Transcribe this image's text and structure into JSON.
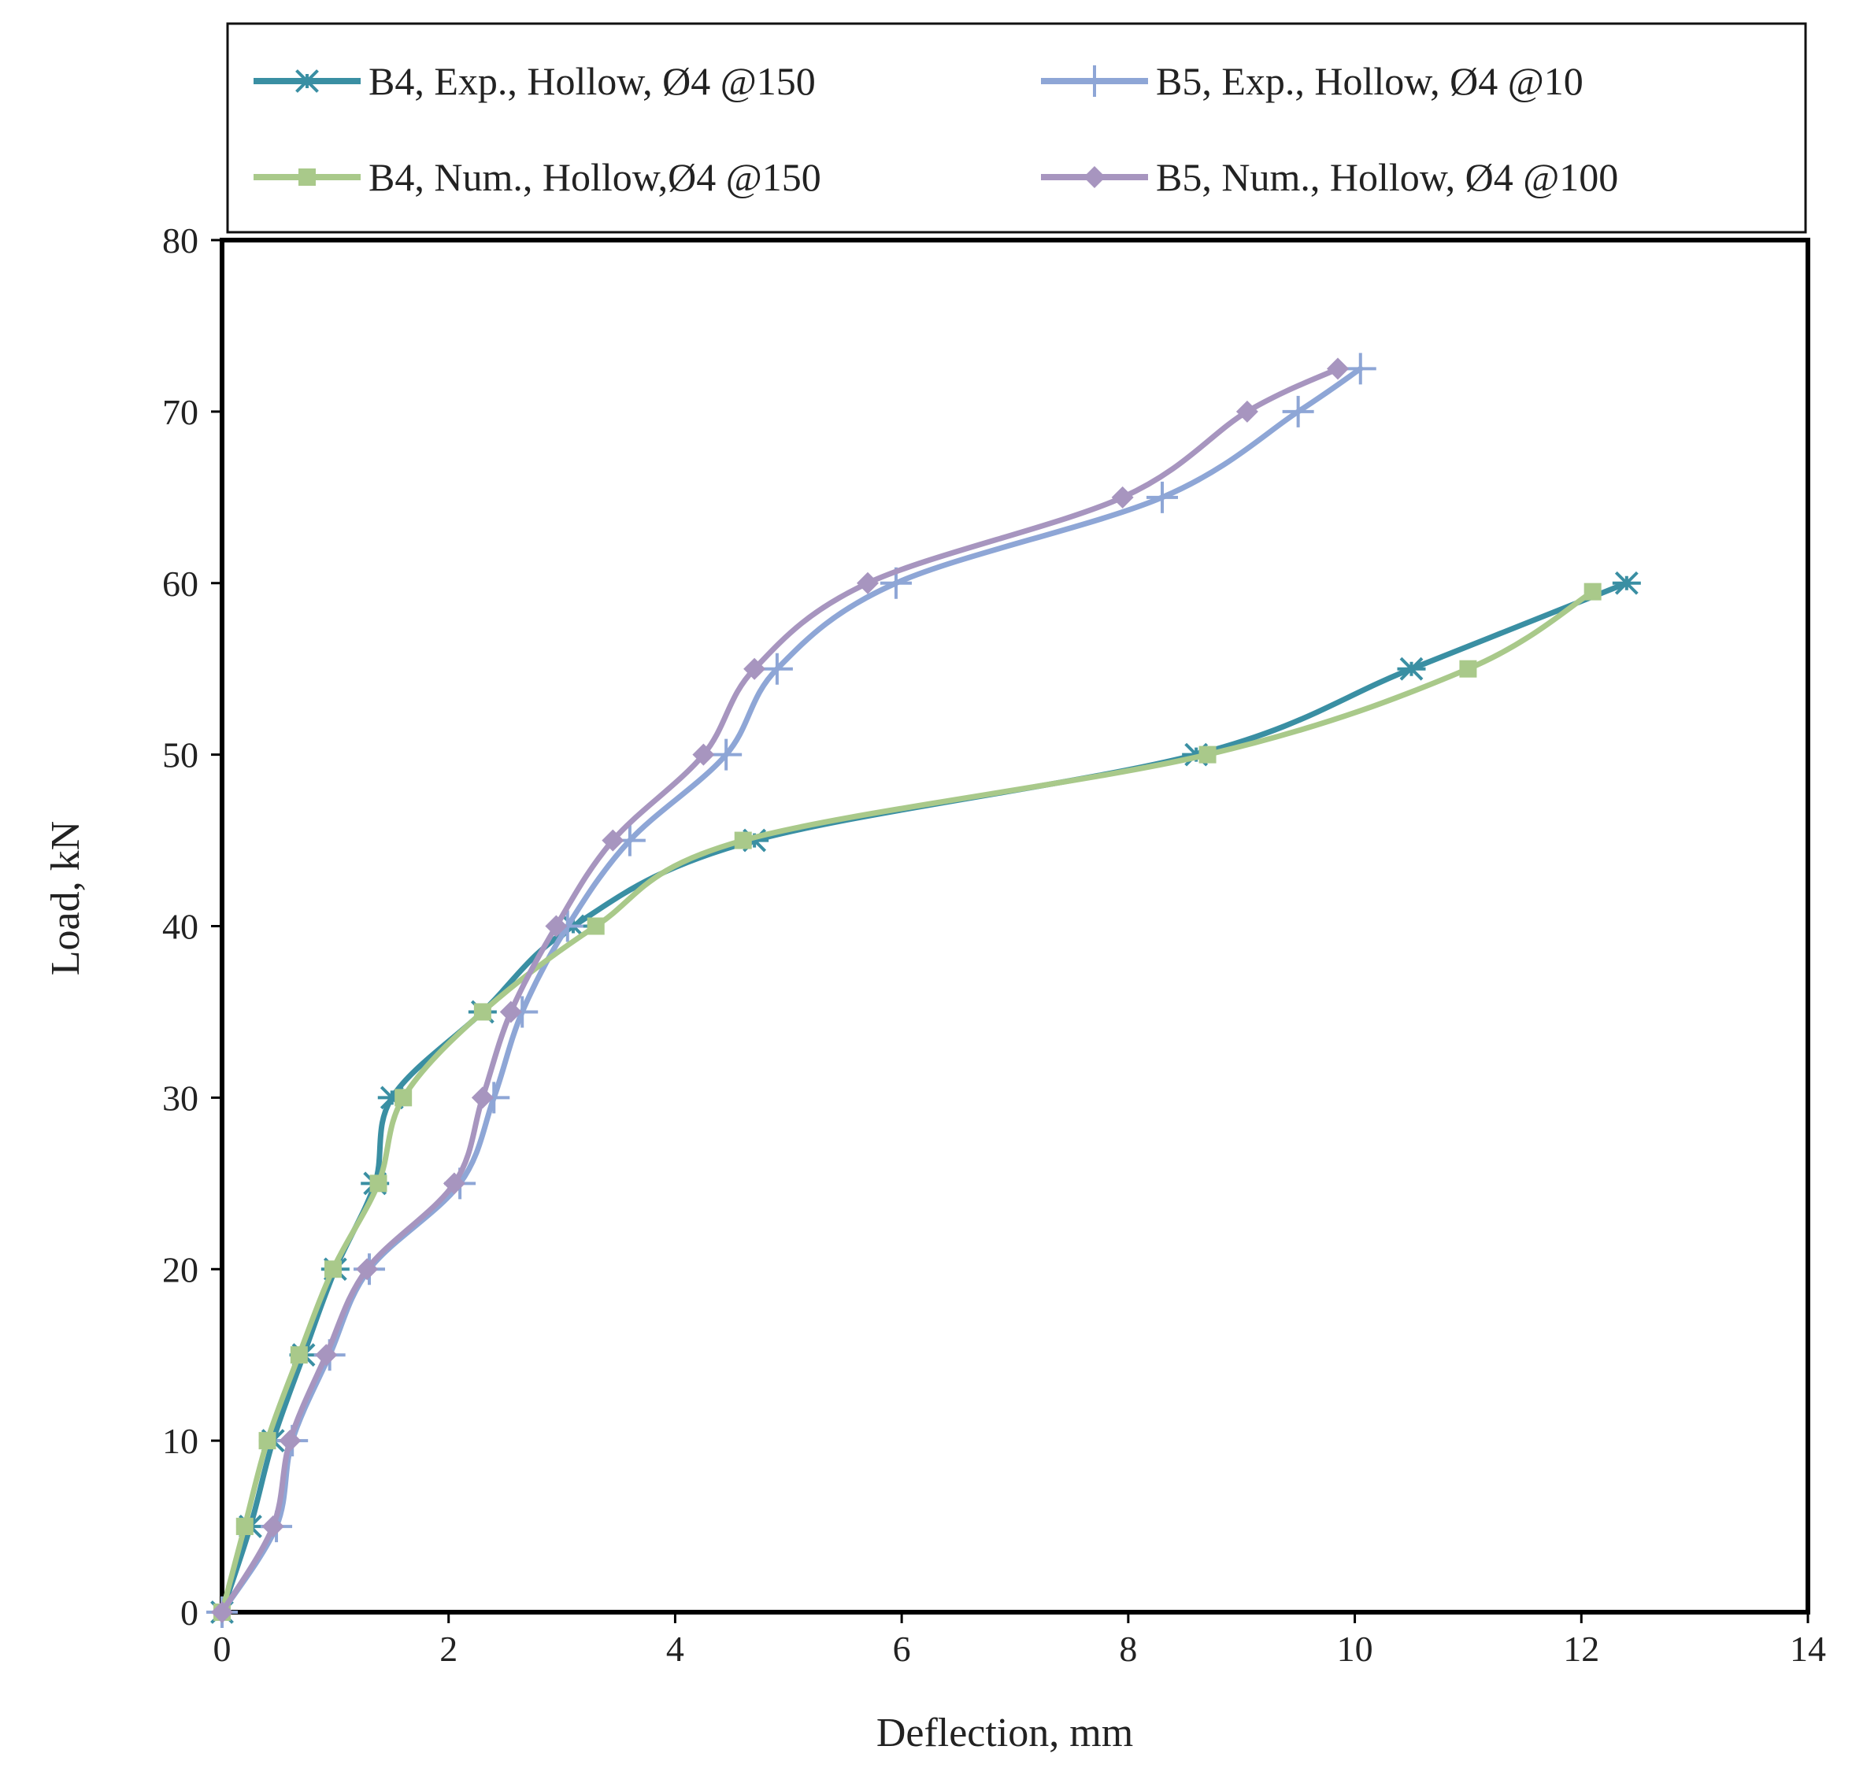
{
  "chart_data": {
    "type": "line",
    "title": "",
    "xlabel": "Deflection, mm",
    "ylabel": "Load, kN",
    "xlim": [
      0,
      14
    ],
    "ylim": [
      0,
      80
    ],
    "xticks": [
      0,
      2,
      4,
      6,
      8,
      10,
      12,
      14
    ],
    "yticks": [
      0,
      10,
      20,
      30,
      40,
      50,
      60,
      70,
      80
    ],
    "grid": false,
    "legend_position": "top",
    "series": [
      {
        "name": "B4, Exp., Hollow, Ø4 @150",
        "color": "#3A8FA3",
        "marker": "asterisk",
        "x": [
          0,
          0.25,
          0.45,
          0.72,
          1.0,
          1.35,
          1.5,
          2.3,
          3.1,
          4.7,
          8.6,
          10.5,
          12.4
        ],
        "y": [
          0,
          5,
          10,
          15,
          20,
          25,
          30,
          35,
          40,
          45,
          50,
          55,
          60
        ]
      },
      {
        "name": "B5, Exp., Hollow, Ø4 @10",
        "color": "#8EA6D6",
        "marker": "plus",
        "x": [
          0,
          0.48,
          0.62,
          0.95,
          1.3,
          2.1,
          2.4,
          2.65,
          3.05,
          3.6,
          4.45,
          4.9,
          5.95,
          8.3,
          9.5,
          10.05
        ],
        "y": [
          0,
          5,
          10,
          15,
          20,
          25,
          30,
          35,
          40,
          45,
          50,
          55,
          60,
          65,
          70,
          72.5
        ]
      },
      {
        "name": "B4, Num., Hollow,Ø4 @150",
        "color": "#A9C98A",
        "marker": "square",
        "x": [
          0,
          0.2,
          0.4,
          0.68,
          0.98,
          1.38,
          1.6,
          2.3,
          3.3,
          4.6,
          8.7,
          11.0,
          12.1
        ],
        "y": [
          0,
          5,
          10,
          15,
          20,
          25,
          30,
          35,
          40,
          45,
          50,
          55,
          59.5
        ]
      },
      {
        "name": "B5, Num., Hollow, Ø4 @100",
        "color": "#A795BF",
        "marker": "diamond",
        "x": [
          0,
          0.45,
          0.6,
          0.92,
          1.28,
          2.05,
          2.3,
          2.55,
          2.95,
          3.45,
          4.25,
          4.7,
          5.7,
          7.95,
          9.05,
          9.85
        ],
        "y": [
          0,
          5,
          10,
          15,
          20,
          25,
          30,
          35,
          40,
          45,
          50,
          55,
          60,
          65,
          70,
          72.5
        ]
      }
    ]
  }
}
